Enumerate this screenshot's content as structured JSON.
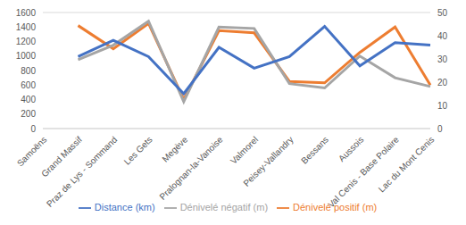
{
  "chart_data": {
    "type": "line",
    "categories": [
      "Samoëns",
      "Grand Massif",
      "Praz de Lys - Sommand",
      "Les Gets",
      "Megève",
      "Pralognan-la-Vanoise",
      "Valmorel",
      "Peisey-Vallandry",
      "Bessans",
      "Aussois",
      "Val Cenis - Base Polaire",
      "Lac du Mont Cenis"
    ],
    "series": [
      {
        "name": "Dénivelé positif (m)",
        "color": "#ed7d31",
        "values": [
          null,
          1420,
          1100,
          1450,
          400,
          1350,
          1320,
          650,
          630,
          1050,
          1400,
          600
        ]
      },
      {
        "name": "Dénivelé négatif (m)",
        "color": "#a5a5a5",
        "values": [
          null,
          950,
          1150,
          1480,
          370,
          1400,
          1380,
          620,
          560,
          1000,
          700,
          580
        ]
      },
      {
        "name": "Distance (km)",
        "color": "#4472c4",
        "axis": "y2",
        "values": [
          null,
          31,
          38,
          31,
          15,
          35,
          26,
          31,
          44,
          27,
          37,
          36
        ]
      }
    ],
    "ylim": [
      0,
      1600
    ],
    "yticks": [
      0,
      200,
      400,
      600,
      800,
      1000,
      1200,
      1400,
      1600
    ],
    "y2lim": [
      0,
      50
    ],
    "y2ticks": [
      0,
      10,
      20,
      30,
      40,
      50
    ],
    "grid": true,
    "legend": "bottom"
  }
}
